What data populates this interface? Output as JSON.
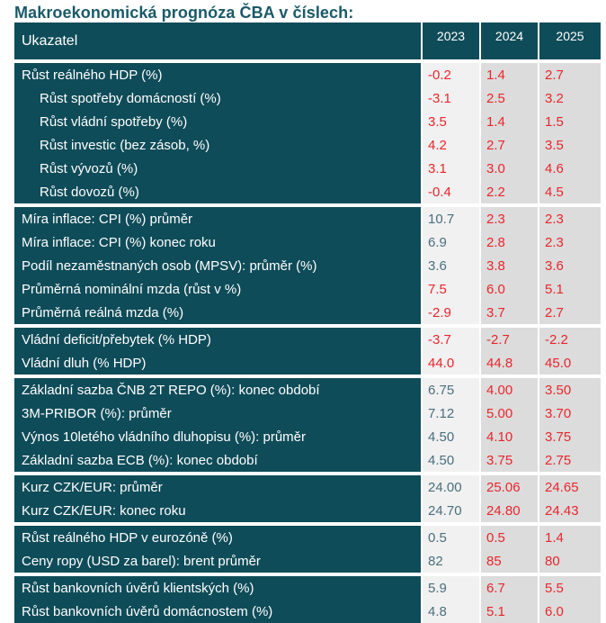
{
  "title": "Makroekonomická prognóza ČBA v číslech:",
  "header": {
    "label": "Ukazatel",
    "years": [
      "2023",
      "2024",
      "2025"
    ]
  },
  "colors": {
    "header_bg": "#0f4c59",
    "positive": "#4a6f7c",
    "negative": "#e8262c",
    "title": "#1a5a68"
  },
  "groups": [
    {
      "rows": [
        {
          "label": "Růst reálného HDP (%)",
          "indent": false,
          "values": [
            "-0.2",
            "1.4",
            "2.7"
          ],
          "tones": [
            "neg",
            "neg",
            "neg"
          ]
        },
        {
          "label": "Růst spotřeby domácností (%)",
          "indent": true,
          "values": [
            "-3.1",
            "2.5",
            "3.2"
          ],
          "tones": [
            "neg",
            "neg",
            "neg"
          ]
        },
        {
          "label": "Růst vládní spotřeby (%)",
          "indent": true,
          "values": [
            "3.5",
            "1.4",
            "1.5"
          ],
          "tones": [
            "neg",
            "neg",
            "neg"
          ]
        },
        {
          "label": "Růst investic (bez zásob, %)",
          "indent": true,
          "values": [
            "4.2",
            "2.7",
            "3.5"
          ],
          "tones": [
            "neg",
            "neg",
            "neg"
          ]
        },
        {
          "label": "Růst vývozů (%)",
          "indent": true,
          "values": [
            "3.1",
            "3.0",
            "4.6"
          ],
          "tones": [
            "neg",
            "neg",
            "neg"
          ]
        },
        {
          "label": "Růst dovozů (%)",
          "indent": true,
          "values": [
            "-0.4",
            "2.2",
            "4.5"
          ],
          "tones": [
            "neg",
            "neg",
            "neg"
          ]
        }
      ]
    },
    {
      "rows": [
        {
          "label": "Míra inflace: CPI (%) průměr",
          "indent": false,
          "values": [
            "10.7",
            "2.3",
            "2.3"
          ],
          "tones": [
            "pos",
            "neg",
            "neg"
          ]
        },
        {
          "label": "Míra inflace: CPI (%) konec roku",
          "indent": false,
          "values": [
            "6.9",
            "2.8",
            "2.3"
          ],
          "tones": [
            "pos",
            "neg",
            "neg"
          ]
        },
        {
          "label": "Podíl nezaměstnaných osob (MPSV): průměr (%)",
          "indent": false,
          "values": [
            "3.6",
            "3.8",
            "3.6"
          ],
          "tones": [
            "pos",
            "neg",
            "neg"
          ]
        },
        {
          "label": "Průměrná nominální mzda (růst v %)",
          "indent": false,
          "values": [
            "7.5",
            "6.0",
            "5.1"
          ],
          "tones": [
            "neg",
            "neg",
            "neg"
          ]
        },
        {
          "label": "Průměrná reálná mzda (%)",
          "indent": false,
          "values": [
            "-2.9",
            "3.7",
            "2.7"
          ],
          "tones": [
            "neg",
            "neg",
            "neg"
          ]
        }
      ]
    },
    {
      "rows": [
        {
          "label": "Vládní deficit/přebytek (% HDP)",
          "indent": false,
          "values": [
            "-3.7",
            "-2.7",
            "-2.2"
          ],
          "tones": [
            "neg",
            "neg",
            "neg"
          ]
        },
        {
          "label": "Vládní dluh (% HDP)",
          "indent": false,
          "values": [
            "44.0",
            "44.8",
            "45.0"
          ],
          "tones": [
            "neg",
            "neg",
            "neg"
          ]
        }
      ]
    },
    {
      "rows": [
        {
          "label": "Základní sazba ČNB 2T REPO (%): konec období",
          "indent": false,
          "values": [
            "6.75",
            "4.00",
            "3.50"
          ],
          "tones": [
            "pos",
            "neg",
            "neg"
          ]
        },
        {
          "label": "3M-PRIBOR (%): průměr",
          "indent": false,
          "values": [
            "7.12",
            "5.00",
            "3.70"
          ],
          "tones": [
            "pos",
            "neg",
            "neg"
          ]
        },
        {
          "label": "Výnos 10letého vládního dluhopisu (%): průměr",
          "indent": false,
          "values": [
            "4.50",
            "4.10",
            "3.75"
          ],
          "tones": [
            "pos",
            "neg",
            "neg"
          ]
        },
        {
          "label": "Základní sazba ECB (%): konec období",
          "indent": false,
          "values": [
            "4.50",
            "3.75",
            "2.75"
          ],
          "tones": [
            "pos",
            "neg",
            "neg"
          ]
        }
      ]
    },
    {
      "rows": [
        {
          "label": "Kurz CZK/EUR: průměr",
          "indent": false,
          "values": [
            "24.00",
            "25.06",
            "24.65"
          ],
          "tones": [
            "pos",
            "neg",
            "neg"
          ]
        },
        {
          "label": "Kurz CZK/EUR: konec roku",
          "indent": false,
          "values": [
            "24.70",
            "24.80",
            "24.43"
          ],
          "tones": [
            "pos",
            "neg",
            "neg"
          ]
        }
      ]
    },
    {
      "rows": [
        {
          "label": "Růst reálného HDP v eurozóně (%)",
          "indent": false,
          "values": [
            "0.5",
            "0.5",
            "1.4"
          ],
          "tones": [
            "pos",
            "neg",
            "neg"
          ]
        },
        {
          "label": "Ceny ropy (USD za barel): brent průměr",
          "indent": false,
          "values": [
            "82",
            "85",
            "80"
          ],
          "tones": [
            "pos",
            "neg",
            "neg"
          ]
        }
      ]
    },
    {
      "rows": [
        {
          "label": "Růst bankovních úvěrů klientských (%)",
          "indent": false,
          "values": [
            "5.9",
            "6.7",
            "5.5"
          ],
          "tones": [
            "pos",
            "neg",
            "neg"
          ]
        },
        {
          "label": "Růst bankovních úvěrů domácnostem (%)",
          "indent": false,
          "values": [
            "4.8",
            "5.1",
            "6.0"
          ],
          "tones": [
            "pos",
            "neg",
            "neg"
          ]
        }
      ]
    }
  ]
}
